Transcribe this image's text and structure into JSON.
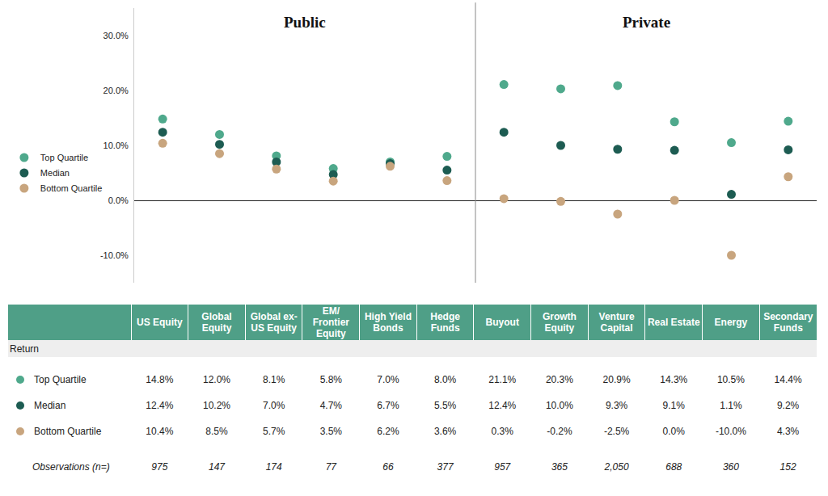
{
  "chart_data": {
    "type": "scatter",
    "marker": "circle",
    "grid": false,
    "legend": "left",
    "tick_labels": "y",
    "groups": [
      {
        "name": "Public",
        "first": 0,
        "last": 5
      },
      {
        "name": "Private",
        "first": 6,
        "last": 11
      }
    ],
    "categories": [
      "US Equity",
      "Global Equity",
      "Global ex-US Equity",
      "EM/ Frontier Equity",
      "High Yield Bonds",
      "Hedge Funds",
      "Buyout",
      "Growth Equity",
      "Venture Capital",
      "Real Estate",
      "Energy",
      "Secondary Funds"
    ],
    "series": [
      {
        "name": "Top Quartile",
        "color": "#4fa98c",
        "values": [
          14.8,
          12.0,
          8.1,
          5.8,
          7.0,
          8.0,
          21.1,
          20.3,
          20.9,
          14.3,
          10.5,
          14.4
        ],
        "value_labels": [
          "14.8%",
          "12.0%",
          "8.1%",
          "5.8%",
          "7.0%",
          "8.0%",
          "21.1%",
          "20.3%",
          "20.9%",
          "14.3%",
          "10.5%",
          "14.4%"
        ]
      },
      {
        "name": "Median",
        "color": "#1d5c52",
        "values": [
          12.4,
          10.2,
          7.0,
          4.7,
          6.7,
          5.5,
          12.4,
          10.0,
          9.3,
          9.1,
          1.1,
          9.2
        ],
        "value_labels": [
          "12.4%",
          "10.2%",
          "7.0%",
          "4.7%",
          "6.7%",
          "5.5%",
          "12.4%",
          "10.0%",
          "9.3%",
          "9.1%",
          "1.1%",
          "9.2%"
        ]
      },
      {
        "name": "Bottom Quartile",
        "color": "#c8a57e",
        "values": [
          10.4,
          8.5,
          5.7,
          3.5,
          6.2,
          3.6,
          0.3,
          -0.2,
          -2.5,
          0.0,
          -10.0,
          4.3
        ],
        "value_labels": [
          "10.4%",
          "8.5%",
          "5.7%",
          "3.5%",
          "6.2%",
          "3.6%",
          "0.3%",
          "-0.2%",
          "-2.5%",
          "0.0%",
          "-10.0%",
          "4.3%"
        ]
      }
    ],
    "ylim": [
      -15,
      35
    ],
    "yticks": [
      {
        "value": -10,
        "label": "-10.0%"
      },
      {
        "value": 0,
        "label": "0.0%"
      },
      {
        "value": 10,
        "label": "10.0%"
      },
      {
        "value": 20,
        "label": "20.0%"
      },
      {
        "value": 30,
        "label": "30.0%"
      }
    ]
  },
  "table": {
    "row_header": "Return",
    "observations": {
      "label": "Observations (n=)",
      "values": [
        975,
        147,
        174,
        77,
        66,
        377,
        957,
        365,
        2050,
        688,
        360,
        152
      ],
      "value_labels": [
        "975",
        "147",
        "174",
        "77",
        "66",
        "377",
        "957",
        "365",
        "2,050",
        "688",
        "360",
        "152"
      ]
    }
  }
}
